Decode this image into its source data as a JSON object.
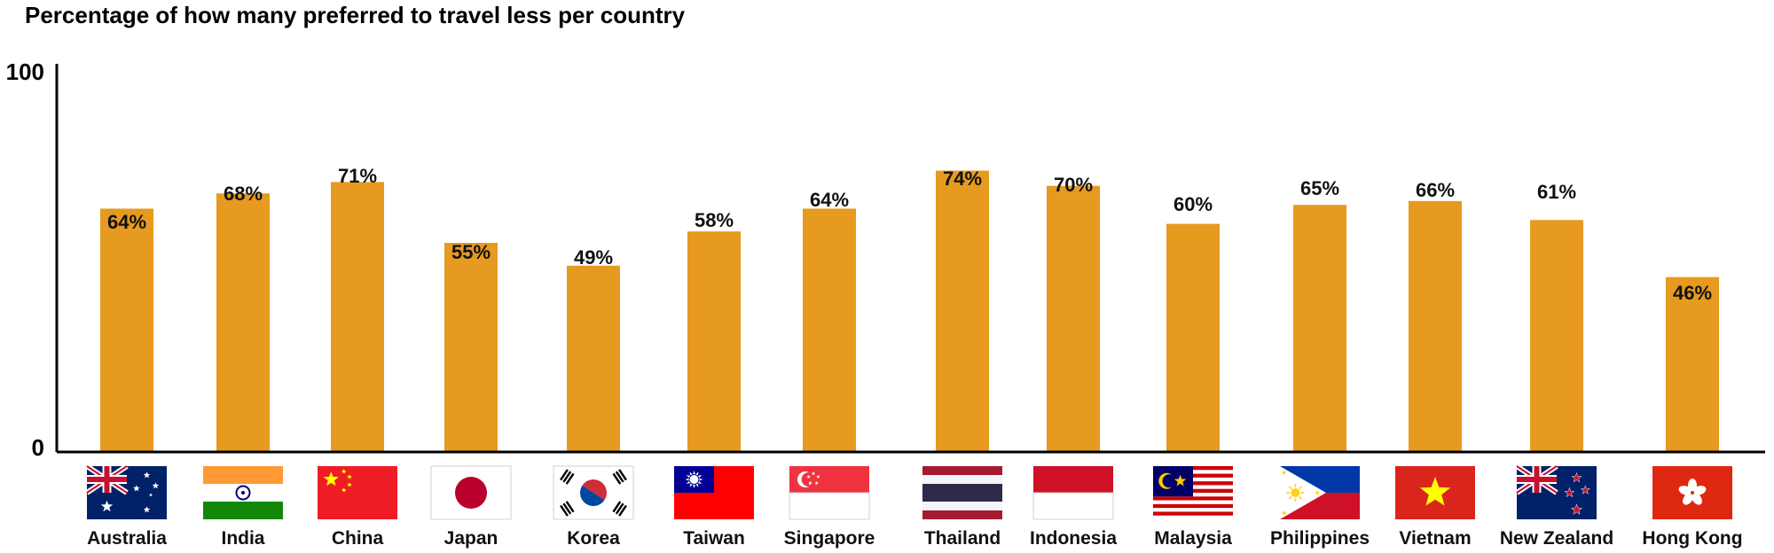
{
  "chart_data": {
    "type": "bar",
    "title": "Percentage of how many preferred to travel less per country",
    "xlabel": "",
    "ylabel": "",
    "ylim": [
      0,
      100
    ],
    "y_ticks": [
      "0",
      "100"
    ],
    "grid": false,
    "bar_color": "#E69A1F",
    "categories": [
      "Australia",
      "India",
      "China",
      "Japan",
      "Korea",
      "Taiwan",
      "Singapore",
      "Thailand",
      "Indonesia",
      "Malaysia",
      "Philippines",
      "Vietnam",
      "New Zealand",
      "Hong Kong"
    ],
    "values": [
      64,
      68,
      71,
      55,
      49,
      58,
      64,
      74,
      70,
      60,
      65,
      66,
      61,
      46
    ],
    "data_labels": [
      "64%",
      "68%",
      "71%",
      "55%",
      "49%",
      "58%",
      "64%",
      "74%",
      "70%",
      "60%",
      "65%",
      "66%",
      "61%",
      "46%"
    ],
    "category_icons": [
      "australia-flag",
      "india-flag",
      "china-flag",
      "japan-flag",
      "korea-flag",
      "taiwan-flag",
      "singapore-flag",
      "thailand-flag",
      "indonesia-flag",
      "malaysia-flag",
      "philippines-flag",
      "vietnam-flag",
      "new-zealand-flag",
      "hong-kong-flag"
    ]
  }
}
